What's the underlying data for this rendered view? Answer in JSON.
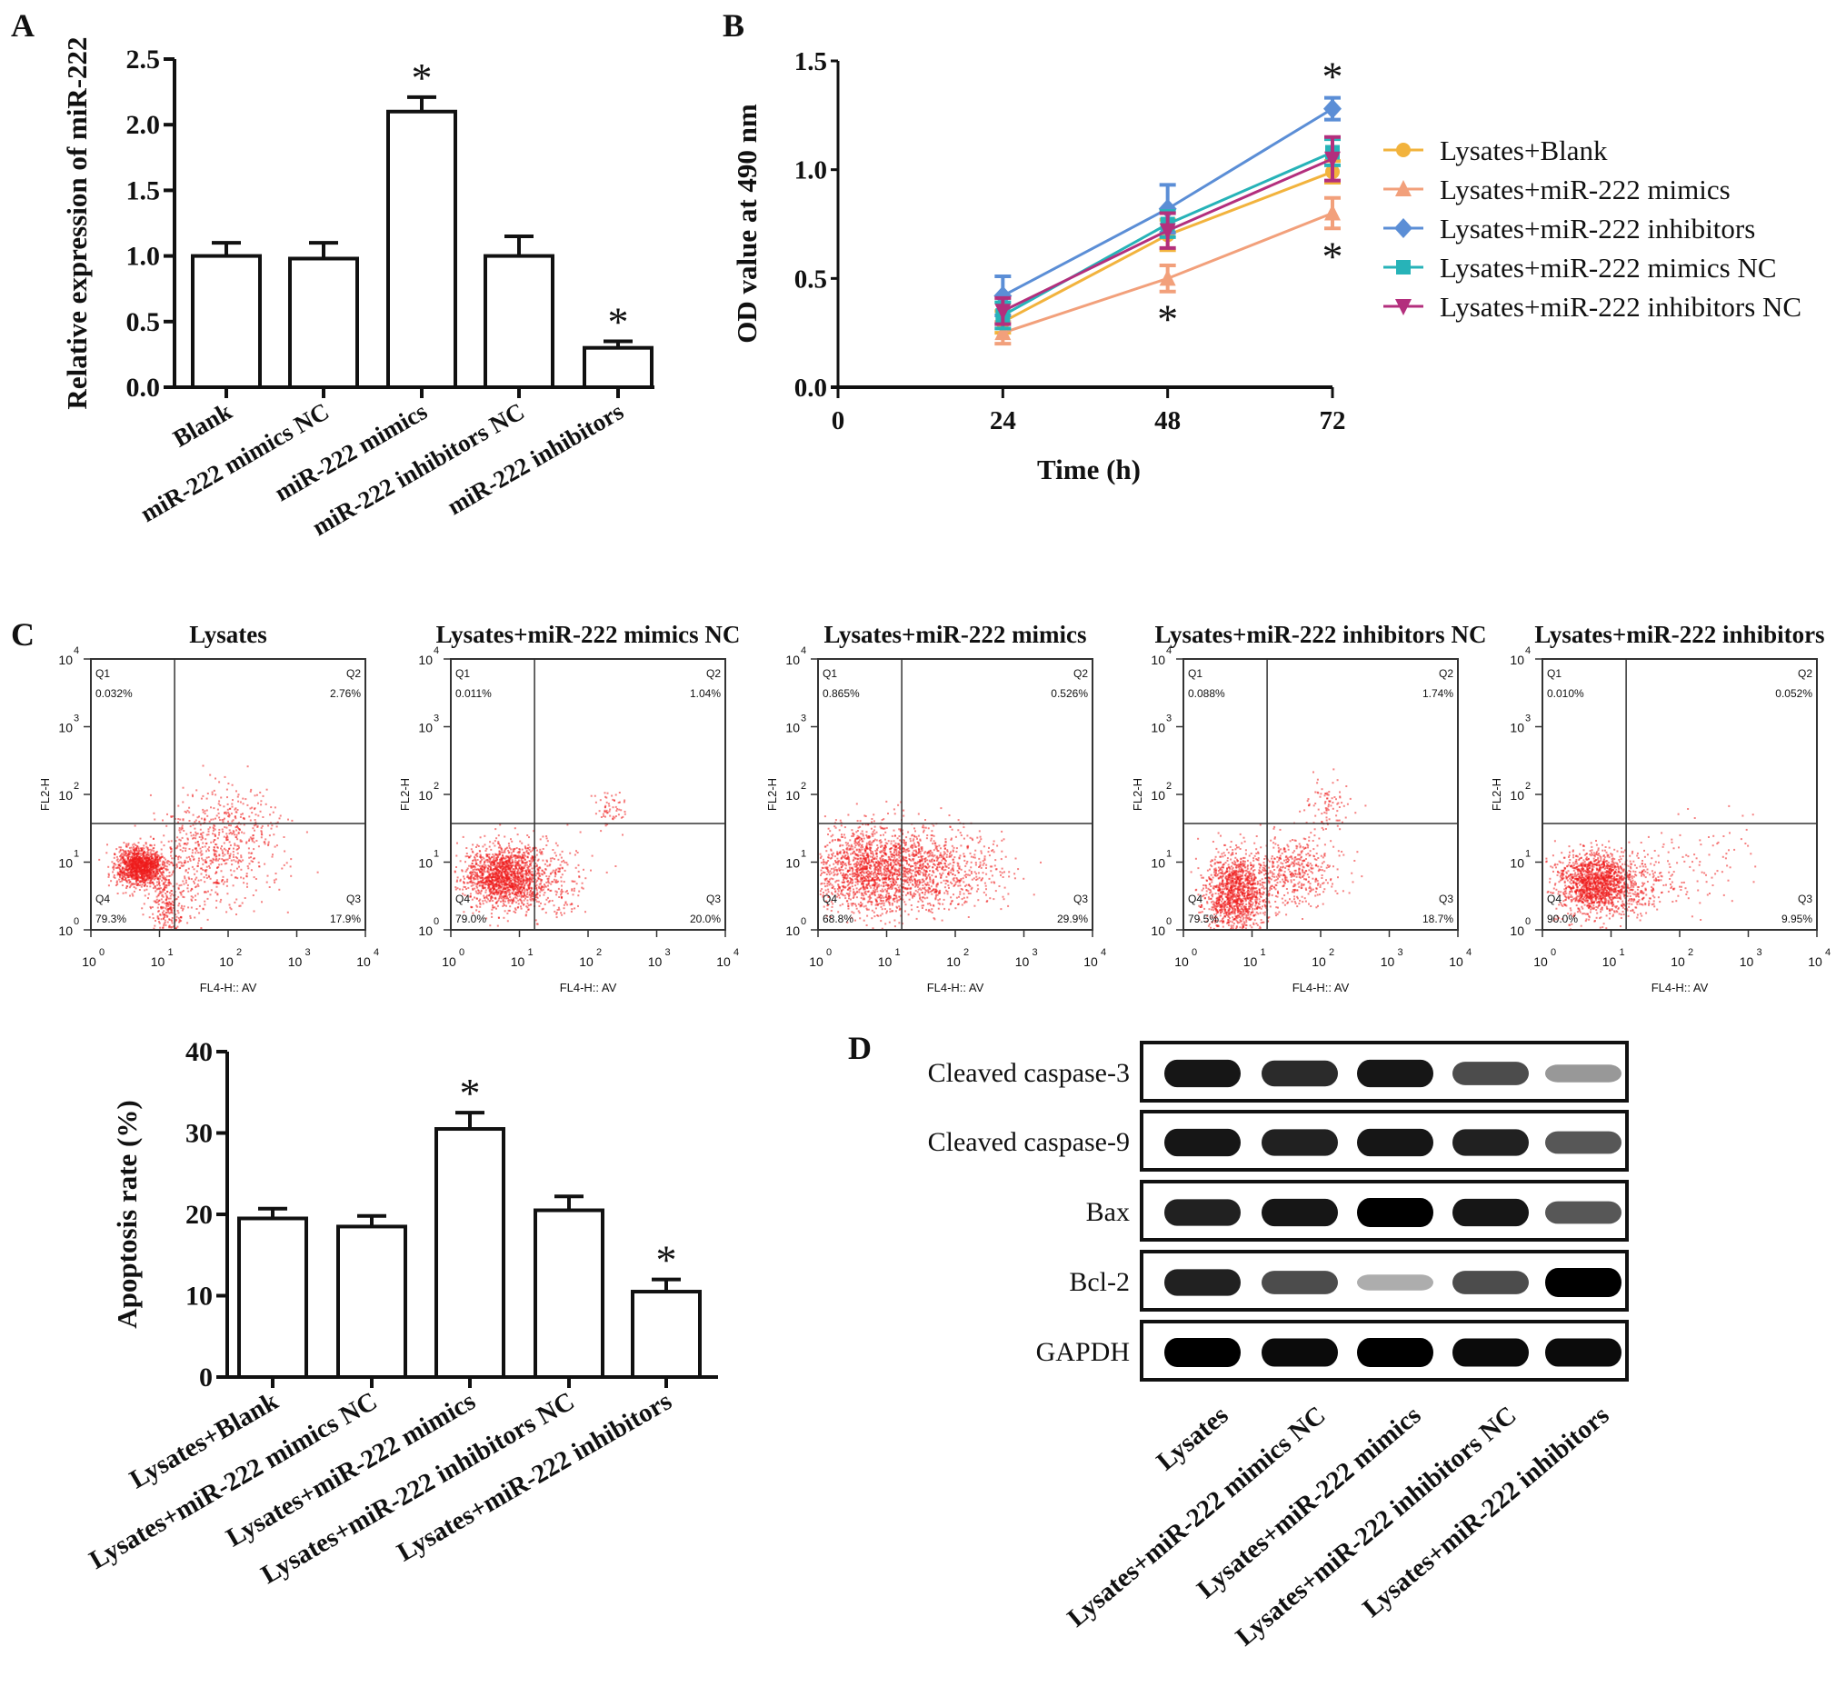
{
  "panels": {
    "a": "A",
    "b": "B",
    "c": "C",
    "d": "D"
  },
  "chart_data": [
    {
      "id": "A",
      "type": "bar",
      "ylabel": "Relative expression of miR-222",
      "xlabel": "",
      "ylim": [
        0,
        2.5
      ],
      "yticks": [
        "0.0",
        "0.5",
        "1.0",
        "1.5",
        "2.0",
        "2.5"
      ],
      "categories": [
        "Blank",
        "miR-222 mimics NC",
        "miR-222 mimics",
        "miR-222 inhibitors NC",
        "miR-222 inhibitors"
      ],
      "values": [
        1.0,
        0.98,
        2.1,
        1.0,
        0.3
      ],
      "errors": [
        0.1,
        0.12,
        0.11,
        0.15,
        0.05
      ],
      "significance": [
        "",
        "",
        "*",
        "",
        "*"
      ]
    },
    {
      "id": "B",
      "type": "line",
      "ylabel": "OD value at 490 nm",
      "xlabel": "Time (h)",
      "x": [
        24,
        48,
        72
      ],
      "xticks": [
        "0",
        "24",
        "48",
        "72"
      ],
      "xlim": [
        0,
        72
      ],
      "ylim": [
        0,
        1.5
      ],
      "yticks": [
        "0.0",
        "0.5",
        "1.0",
        "1.5"
      ],
      "legend_position": "right",
      "series": [
        {
          "name": "Lysates+Blank",
          "marker": "circle",
          "color": "#f2b33d",
          "values": [
            0.3,
            0.7,
            0.99
          ],
          "errors": [
            0.05,
            0.07,
            0.05
          ]
        },
        {
          "name": "Lysates+miR-222 mimics",
          "marker": "triangle-up",
          "color": "#f2a07b",
          "values": [
            0.25,
            0.5,
            0.8
          ],
          "errors": [
            0.05,
            0.06,
            0.07
          ]
        },
        {
          "name": "Lysates+miR-222 inhibitors",
          "marker": "diamond",
          "color": "#5b8ed6",
          "values": [
            0.42,
            0.82,
            1.28
          ],
          "errors": [
            0.09,
            0.11,
            0.05
          ]
        },
        {
          "name": "Lysates+miR-222 mimics NC",
          "marker": "square",
          "color": "#27b3b8",
          "values": [
            0.33,
            0.75,
            1.08
          ],
          "errors": [
            0.06,
            0.06,
            0.06
          ]
        },
        {
          "name": "Lysates+miR-222 inhibitors NC",
          "marker": "triangle-down",
          "color": "#b32f7d",
          "values": [
            0.35,
            0.72,
            1.05
          ],
          "errors": [
            0.06,
            0.08,
            0.1
          ]
        }
      ],
      "significance": [
        {
          "x": 72,
          "series": "Lysates+miR-222 inhibitors",
          "position": "above",
          "text": "*"
        },
        {
          "x": 72,
          "series": "Lysates+miR-222 mimics",
          "position": "below",
          "text": "*"
        },
        {
          "x": 48,
          "series": "Lysates+miR-222 mimics",
          "position": "below",
          "text": "*"
        }
      ]
    },
    {
      "id": "C-flow",
      "type": "scatter",
      "xlabel": "FL4-H:: AV",
      "ylabel": "FL2-H",
      "scale": "log10",
      "xlim": [
        1,
        10000
      ],
      "ylim": [
        1,
        10000
      ],
      "tick_base": "10",
      "tick_exponents": [
        "0",
        "1",
        "2",
        "3",
        "4"
      ],
      "quadrant_names": [
        "Q1",
        "Q2",
        "Q3",
        "Q4"
      ],
      "plots": [
        {
          "title": "Lysates",
          "q1": "0.032%",
          "q2": "2.76%",
          "q3": "17.9%",
          "q4": "79.3%"
        },
        {
          "title": "Lysates+miR-222 mimics NC",
          "q1": "0.011%",
          "q2": "1.04%",
          "q3": "20.0%",
          "q4": "79.0%"
        },
        {
          "title": "Lysates+miR-222 mimics",
          "q1": "0.865%",
          "q2": "0.526%",
          "q3": "29.9%",
          "q4": "68.8%"
        },
        {
          "title": "Lysates+miR-222 inhibitors NC",
          "q1": "0.088%",
          "q2": "1.74%",
          "q3": "18.7%",
          "q4": "79.5%"
        },
        {
          "title": "Lysates+miR-222 inhibitors",
          "q1": "0.010%",
          "q2": "0.052%",
          "q3": "9.95%",
          "q4": "90.0%"
        }
      ],
      "dot_color": "#ee1c1c"
    },
    {
      "id": "C-bar",
      "type": "bar",
      "ylabel": "Apoptosis rate (%)",
      "xlabel": "",
      "ylim": [
        0,
        40
      ],
      "yticks": [
        "0",
        "10",
        "20",
        "30",
        "40"
      ],
      "categories": [
        "Lysates+Blank",
        "Lysates+miR-222 mimics NC",
        "Lysates+miR-222 mimics",
        "Lysates+miR-222 inhibitors NC",
        "Lysates+miR-222 inhibitors"
      ],
      "values": [
        19.5,
        18.5,
        30.5,
        20.5,
        10.5
      ],
      "errors": [
        1.2,
        1.3,
        2.0,
        1.7,
        1.5
      ],
      "significance": [
        "",
        "",
        "*",
        "",
        "*"
      ]
    },
    {
      "id": "D",
      "type": "heatmap",
      "description_kind": "western blot",
      "rows": [
        "Cleaved caspase-3",
        "Cleaved caspase-9",
        "Bax",
        "Bcl-2",
        "GAPDH"
      ],
      "lanes": [
        "Lysates",
        "Lysates+miR-222 mimics NC",
        "Lysates+miR-222 mimics",
        "Lysates+miR-222 inhibitors NC",
        "Lysates+miR-222 inhibitors"
      ],
      "band_intensity": [
        [
          0.9,
          0.8,
          0.9,
          0.65,
          0.3
        ],
        [
          0.9,
          0.85,
          0.9,
          0.85,
          0.6
        ],
        [
          0.85,
          0.9,
          1.0,
          0.9,
          0.6
        ],
        [
          0.85,
          0.65,
          0.2,
          0.65,
          1.0
        ],
        [
          1.0,
          0.95,
          1.0,
          0.95,
          0.95
        ]
      ]
    }
  ]
}
